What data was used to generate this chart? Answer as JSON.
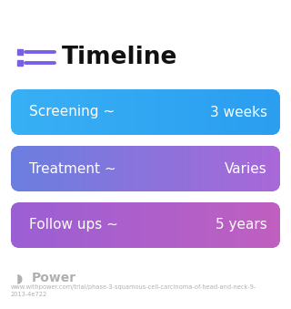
{
  "title": "Timeline",
  "title_icon_color": "#7B5EE8",
  "background_color": "#ffffff",
  "rows": [
    {
      "label": "Screening ~",
      "value": "3 weeks",
      "color_left": "#38B0F5",
      "color_right": "#2B9EF0"
    },
    {
      "label": "Treatment ~",
      "value": "Varies",
      "color_left": "#6B7FE0",
      "color_right": "#A968D8"
    },
    {
      "label": "Follow ups ~",
      "value": "5 years",
      "color_left": "#9B5FD5",
      "color_right": "#C060C0"
    }
  ],
  "footer_logo_text": "Power",
  "footer_url": "www.withpower.com/trial/phase-3-squamous-cell-carcinoma-of-head-and-neck-9-\n2013-4e722",
  "footer_color": "#b0b0b0"
}
